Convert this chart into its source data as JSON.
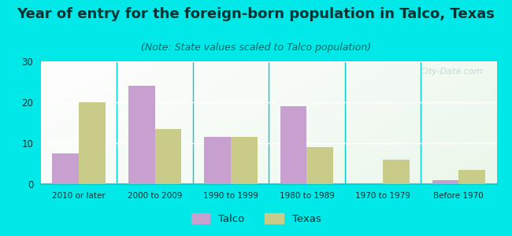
{
  "title": "Year of entry for the foreign-born population in Talco, Texas",
  "subtitle": "(Note: State values scaled to Talco population)",
  "categories": [
    "2010 or later",
    "2000 to 2009",
    "1990 to 1999",
    "1980 to 1989",
    "1970 to 1979",
    "Before 1970"
  ],
  "talco_values": [
    7.5,
    24.0,
    11.5,
    19.0,
    0.0,
    1.0
  ],
  "texas_values": [
    20.0,
    13.5,
    11.5,
    9.0,
    6.0,
    3.5
  ],
  "talco_color": "#c8a0d0",
  "texas_color": "#c8cc88",
  "background_color": "#00e8e8",
  "ylim": [
    0,
    30
  ],
  "yticks": [
    0,
    10,
    20,
    30
  ],
  "bar_width": 0.35,
  "title_fontsize": 13,
  "subtitle_fontsize": 9,
  "legend_labels": [
    "Talco",
    "Texas"
  ],
  "watermark": "City-Data.com",
  "title_color": "#003333",
  "subtitle_color": "#006666"
}
